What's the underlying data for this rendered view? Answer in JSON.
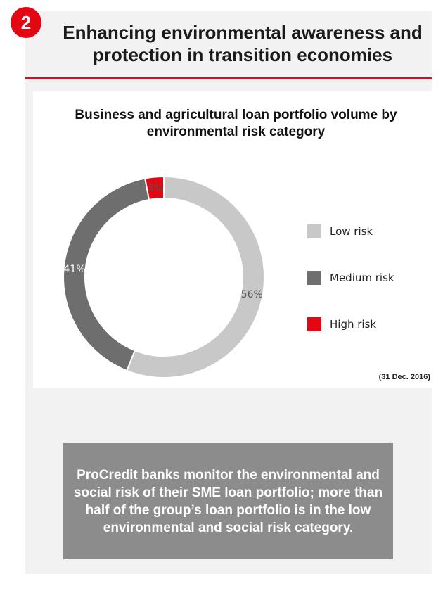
{
  "badge": "2",
  "title": "Enhancing environmental awareness and protection in transition economies",
  "colors": {
    "accent": "#e30613",
    "rule": "#c0152a",
    "low": "#c8c8c8",
    "medium": "#6e6e6e",
    "high": "#e30613",
    "note_bg": "#8c8c8c"
  },
  "chart_data": {
    "type": "pie",
    "donut": true,
    "title": "Business and agricultural loan portfolio volume by environmental risk category",
    "labels": [
      "Low risk",
      "Medium risk",
      "High risk"
    ],
    "values": [
      56,
      41,
      3
    ],
    "value_labels": [
      "56%",
      "41%",
      "3%"
    ],
    "colors": [
      "#c8c8c8",
      "#6e6e6e",
      "#e30613"
    ],
    "legend_position": "right",
    "footnote": "(31 Dec. 2016)"
  },
  "note": "ProCredit banks monitor the environmental and social risk of their SME loan portfolio; more than half of the group’s loan portfolio is in the low environmental and social risk category."
}
